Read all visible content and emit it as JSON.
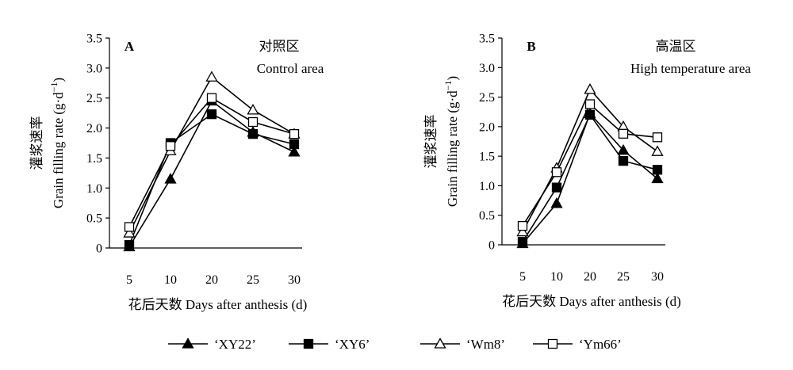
{
  "chart_data": [
    {
      "type": "line",
      "panel_label": "A",
      "title_zh": "对照区",
      "title_en": "Control area",
      "ylabel_zh": "灌浆速率",
      "ylabel_en": "Grain filling rate (g·d",
      "ylabel_sup": "−1",
      "ylabel_close": ")",
      "xlabel": "花后天数  Days after anthesis (d)",
      "categories": [
        "5",
        "10",
        "20",
        "25",
        "30"
      ],
      "ylim": [
        0,
        3.5
      ],
      "yticks": [
        "0",
        "0.5",
        "1.0",
        "1.5",
        "2.0",
        "2.5",
        "3.0",
        "3.5"
      ],
      "grid": false,
      "series": [
        {
          "name": "‘XY22’",
          "marker": "filled-triangle",
          "values": [
            0.02,
            1.15,
            2.45,
            1.93,
            1.6
          ]
        },
        {
          "name": "‘XY6’",
          "marker": "filled-square",
          "values": [
            0.05,
            1.75,
            2.23,
            1.9,
            1.73
          ]
        },
        {
          "name": "‘Wm8’",
          "marker": "open-triangle",
          "values": [
            0.25,
            1.62,
            2.85,
            2.3,
            1.9
          ]
        },
        {
          "name": "‘Ym66’",
          "marker": "open-square",
          "values": [
            0.35,
            1.7,
            2.5,
            2.1,
            1.9
          ]
        }
      ]
    },
    {
      "type": "line",
      "panel_label": "B",
      "title_zh": "高温区",
      "title_en": "High temperature area",
      "ylabel_zh": "灌浆速率",
      "ylabel_en": "Grain filling rate (g·d",
      "ylabel_sup": "−1",
      "ylabel_close": ")",
      "xlabel": "花后天数  Days after anthesis (d)",
      "categories": [
        "5",
        "10",
        "20",
        "25",
        "30"
      ],
      "ylim": [
        0,
        3.5
      ],
      "yticks": [
        "0",
        "0.5",
        "1.0",
        "1.5",
        "2.0",
        "2.5",
        "3.0",
        "3.5"
      ],
      "grid": false,
      "series": [
        {
          "name": "‘XY22’",
          "marker": "filled-triangle",
          "values": [
            0.02,
            0.7,
            2.22,
            1.6,
            1.12
          ]
        },
        {
          "name": "‘XY6’",
          "marker": "filled-square",
          "values": [
            0.05,
            0.97,
            2.2,
            1.42,
            1.27
          ]
        },
        {
          "name": "‘Wm8’",
          "marker": "open-triangle",
          "values": [
            0.22,
            1.3,
            2.63,
            2.0,
            1.58
          ]
        },
        {
          "name": "‘Ym66’",
          "marker": "open-square",
          "values": [
            0.32,
            1.23,
            2.38,
            1.88,
            1.82
          ]
        }
      ]
    }
  ],
  "legend": [
    {
      "label": "‘XY22’",
      "marker": "filled-triangle"
    },
    {
      "label": "‘XY6’",
      "marker": "filled-square"
    },
    {
      "label": "‘Wm8’",
      "marker": "open-triangle"
    },
    {
      "label": "‘Ym66’",
      "marker": "open-square"
    }
  ],
  "colors": {
    "ink": "#000000",
    "background": "#ffffff"
  }
}
